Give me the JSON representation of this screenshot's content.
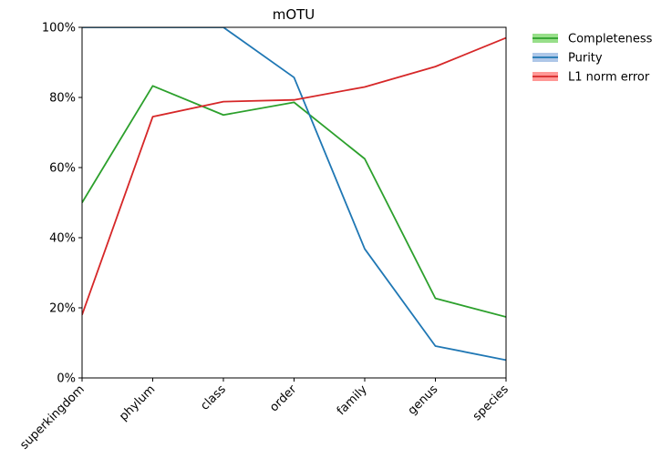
{
  "chart_data": {
    "type": "line",
    "title": "mOTU",
    "categories": [
      "superkingdom",
      "phylum",
      "class",
      "order",
      "family",
      "genus",
      "species"
    ],
    "ylim": [
      0,
      100
    ],
    "yticks": [
      "0%",
      "20%",
      "40%",
      "60%",
      "80%",
      "100%"
    ],
    "ytick_values": [
      0,
      20,
      40,
      60,
      80,
      100
    ],
    "grid": false,
    "legend_position": "outside-top-right",
    "series": [
      {
        "name": "Completeness",
        "color": "#2ca02c",
        "band_color": "#98df8a",
        "values": [
          50,
          83.3,
          75,
          78.6,
          62.5,
          22.7,
          17.4
        ]
      },
      {
        "name": "Purity",
        "color": "#1f77b4",
        "band_color": "#aec7e8",
        "values": [
          100,
          100,
          100,
          85.7,
          36.8,
          9.1,
          5.1
        ]
      },
      {
        "name": "L1 norm error",
        "color": "#d62728",
        "band_color": "#ff9896",
        "values": [
          18,
          74.5,
          78.8,
          79.3,
          83,
          88.8,
          97
        ]
      }
    ]
  }
}
